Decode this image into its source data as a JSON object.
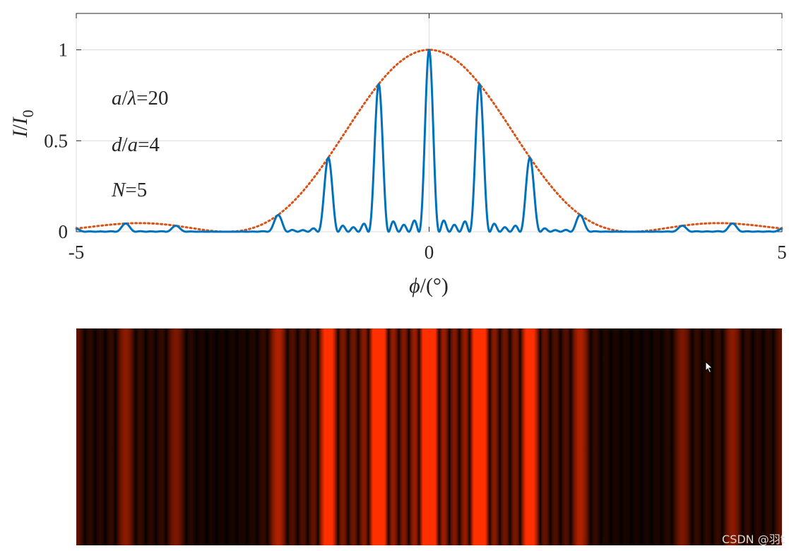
{
  "chart_data": [
    {
      "type": "line",
      "xlabel": "ϕ/(°)",
      "ylabel": "I/I0",
      "xlim": [
        -5,
        5
      ],
      "ylim": [
        0,
        1.2
      ],
      "x_ticks": [
        "-5",
        "0",
        "5"
      ],
      "y_ticks": [
        "0",
        "0.5",
        "1"
      ],
      "grid": true,
      "annotations": [
        "a/λ=20",
        "d/a=4",
        "N=5"
      ],
      "series": [
        {
          "style": "solid",
          "color": "#0072BD",
          "formula": "sinc^2(a/λ · sin ϕ) · [sin(N·π·d/λ·sin ϕ)/(N·sin(π·d/λ·sin ϕ))]^2",
          "x": [
            -4.3,
            -3.58,
            -2.15,
            -1.43,
            -0.72,
            0.0,
            0.72,
            1.43,
            2.15,
            3.58,
            4.3
          ],
          "values": [
            0.04,
            0.03,
            0.09,
            0.4,
            0.81,
            1.0,
            0.81,
            0.4,
            0.09,
            0.03,
            0.04
          ]
        },
        {
          "style": "dotted",
          "color": "#D95319",
          "formula": "sinc^2(a/λ · sin ϕ)"
        }
      ]
    },
    {
      "type": "heatmap",
      "colormap": [
        "#000000",
        "#ff3000"
      ],
      "x_range": [
        -5,
        5
      ]
    }
  ],
  "parameters": {
    "a_over_lambda": 20,
    "d_over_a": 4,
    "N": 5
  },
  "watermark": "CSDN @羽t"
}
